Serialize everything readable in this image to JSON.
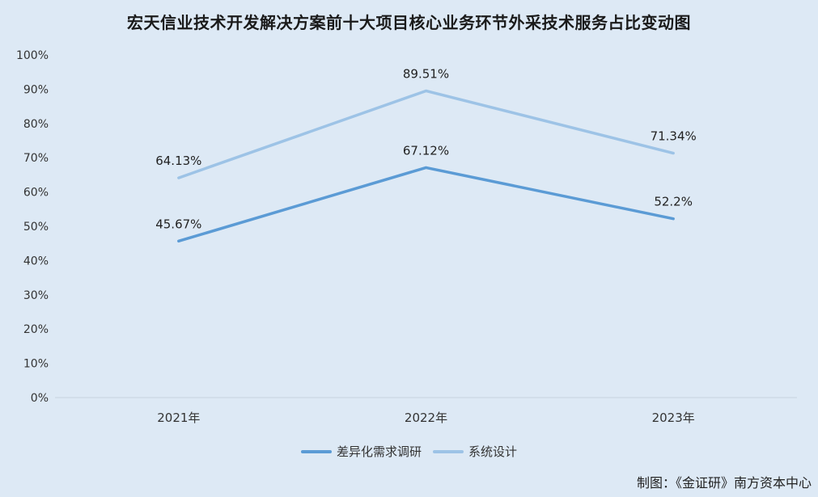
{
  "chart_data": {
    "type": "line",
    "title": "宏天信业技术开发解决方案前十大项目核心业务环节外采技术服务占比变动图",
    "categories": [
      "2021年",
      "2022年",
      "2023年"
    ],
    "series": [
      {
        "name": "差异化需求调研",
        "values": [
          45.67,
          67.12,
          52.2
        ],
        "labels": [
          "45.67%",
          "67.12%",
          "52.2%"
        ],
        "color": "#5b9bd5"
      },
      {
        "name": "系统设计",
        "values": [
          64.13,
          89.51,
          71.34
        ],
        "labels": [
          "64.13%",
          "89.51%",
          "71.34%"
        ],
        "color": "#9dc3e6"
      }
    ],
    "y_ticks": [
      0,
      10,
      20,
      30,
      40,
      50,
      60,
      70,
      80,
      90,
      100
    ],
    "y_tick_labels": [
      "0%",
      "10%",
      "20%",
      "30%",
      "40%",
      "50%",
      "60%",
      "70%",
      "80%",
      "90%",
      "100%"
    ],
    "ylim": [
      0,
      100
    ],
    "xlabel": "",
    "ylabel": "",
    "grid": false,
    "legend_position": "bottom"
  },
  "source_note": "制图：《金证研》南方资本中心"
}
